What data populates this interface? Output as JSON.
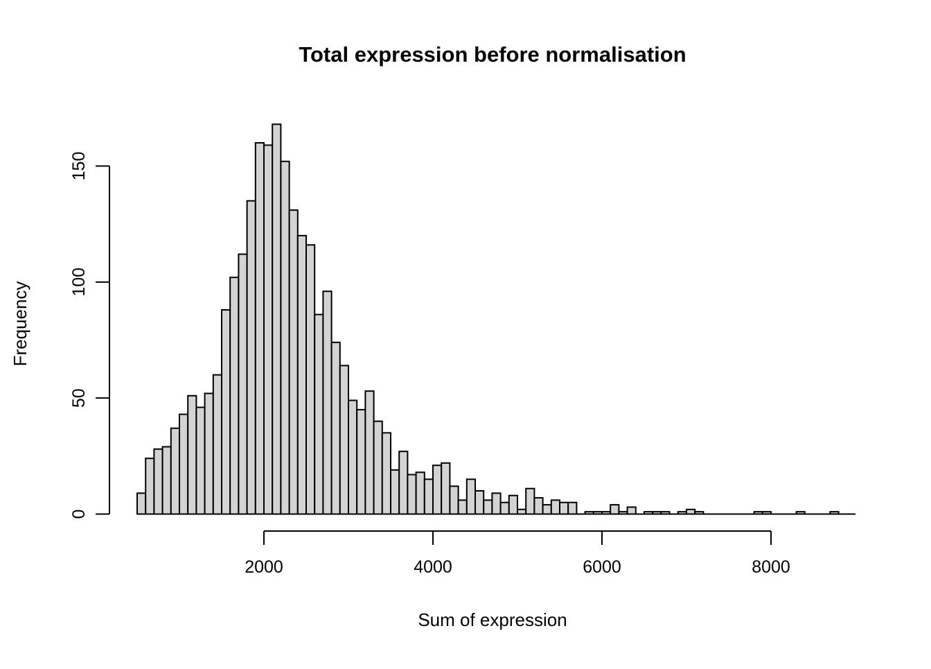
{
  "chart_data": {
    "type": "bar",
    "chart_kind": "histogram",
    "title": "Total expression before normalisation",
    "xlabel": "Sum of expression",
    "ylabel": "Frequency",
    "bin_start": 500,
    "bin_width": 100,
    "counts": [
      9,
      24,
      28,
      29,
      37,
      43,
      51,
      46,
      52,
      60,
      88,
      102,
      112,
      135,
      160,
      159,
      168,
      152,
      131,
      120,
      116,
      86,
      96,
      74,
      64,
      49,
      45,
      53,
      40,
      35,
      19,
      27,
      17,
      18,
      15,
      21,
      22,
      12,
      6,
      15,
      10,
      6,
      9,
      5,
      8,
      2,
      11,
      7,
      4,
      6,
      5,
      5,
      0,
      1,
      1,
      1,
      4,
      1,
      3,
      0,
      1,
      1,
      1,
      0,
      1,
      2,
      1,
      0,
      0,
      0,
      0,
      0,
      0,
      1,
      1,
      0,
      0,
      0,
      1,
      0,
      0,
      0,
      1,
      0,
      0
    ],
    "x_ticks": [
      2000,
      4000,
      6000,
      8000
    ],
    "y_ticks": [
      0,
      50,
      100,
      150
    ],
    "xlim": [
      500,
      9000
    ],
    "ylim": [
      0,
      168
    ],
    "grid": false,
    "legend_position": "none",
    "bar_fill": "#d3d3d3",
    "bar_stroke": "#000000",
    "axis_color": "#000000",
    "background": "#ffffff"
  }
}
